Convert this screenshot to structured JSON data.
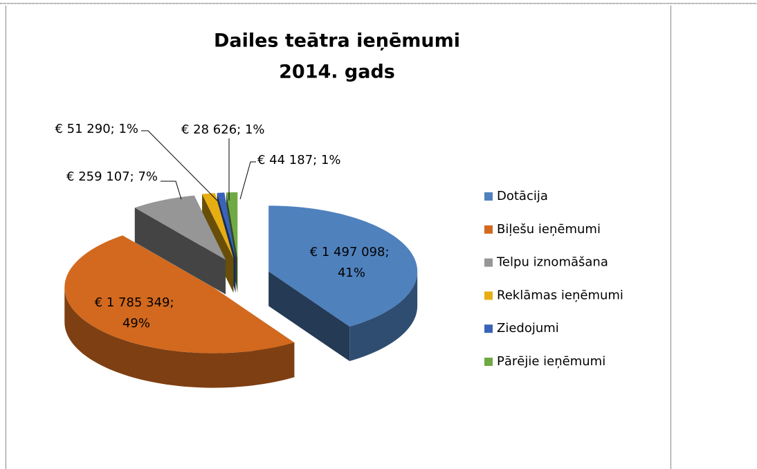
{
  "chart_data": {
    "type": "pie3d",
    "title": "Dailes teātra ieņēmumi",
    "subtitle": "2014. gads",
    "categories": [
      "Dotācija",
      "Biļešu ieņēmumi",
      "Telpu iznomāšana",
      "Reklāmas ieņēmumi",
      "Ziedojumi",
      "Pārējie ieņēmumi"
    ],
    "values": [
      1497098,
      1785349,
      259107,
      51290,
      28626,
      44187
    ],
    "value_labels": [
      "€ 1 497 098; 41%",
      "€ 1 785 349; 49%",
      "€ 259 107; 7%",
      "€ 51 290; 1%",
      "€ 28 626; 1%",
      "€ 44 187; 1%"
    ],
    "colors": [
      "#4f81bd",
      "#d2691e",
      "#969696",
      "#e6ae12",
      "#3a62b8",
      "#6fa943"
    ],
    "legend": "right"
  }
}
